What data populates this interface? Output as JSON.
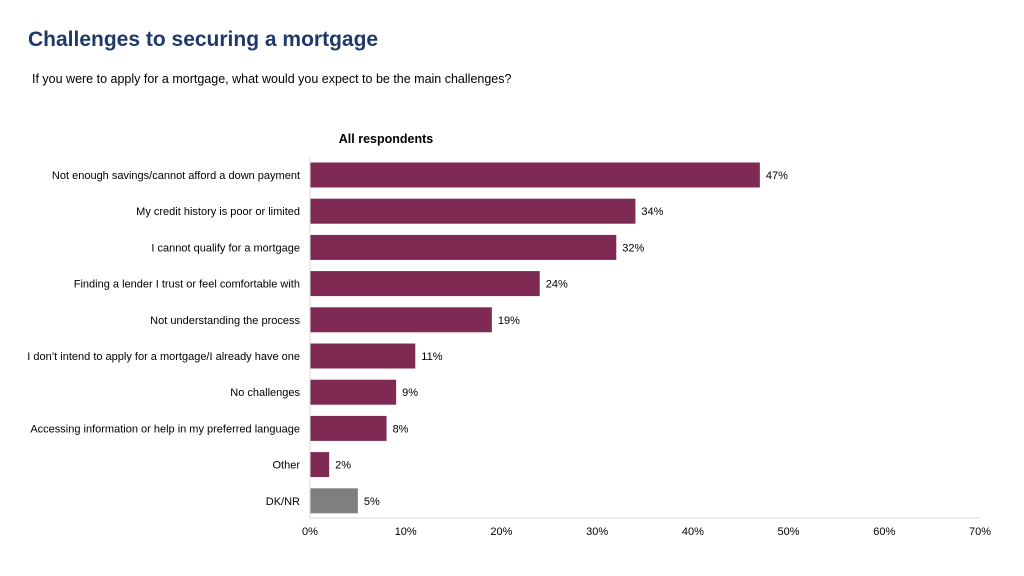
{
  "title": "Challenges to securing a mortgage",
  "subtitle": "If you were to apply for a mortgage, what would you expect to be the main challenges?",
  "colors": {
    "title": "#1f3a68",
    "bar_primary": "#7e2a52",
    "bar_secondary": "#7f7f7f",
    "axis": "#d9d9d9"
  },
  "chart_data": {
    "type": "bar",
    "orientation": "horizontal",
    "title": "All respondents",
    "xlabel": "",
    "ylabel": "",
    "xlim": [
      0,
      70
    ],
    "xticks": [
      0,
      10,
      20,
      30,
      40,
      50,
      60,
      70
    ],
    "xtick_labels": [
      "0%",
      "10%",
      "20%",
      "30%",
      "40%",
      "50%",
      "60%",
      "70%"
    ],
    "grid": false,
    "categories": [
      "Not enough savings/cannot afford a down payment",
      "My credit history is poor or limited",
      "I cannot qualify for a mortgage",
      "Finding a lender I trust or feel comfortable with",
      "Not understanding the process",
      "I don’t intend to apply for a mortgage/I already have one",
      "No challenges",
      "Accessing information or help in my preferred language",
      "Other",
      "DK/NR"
    ],
    "values": [
      47,
      34,
      32,
      24,
      19,
      11,
      9,
      8,
      2,
      5
    ],
    "value_labels": [
      "47%",
      "34%",
      "32%",
      "24%",
      "19%",
      "11%",
      "9%",
      "8%",
      "2%",
      "5%"
    ],
    "bar_colors": [
      "primary",
      "primary",
      "primary",
      "primary",
      "primary",
      "primary",
      "primary",
      "primary",
      "primary",
      "secondary"
    ]
  }
}
